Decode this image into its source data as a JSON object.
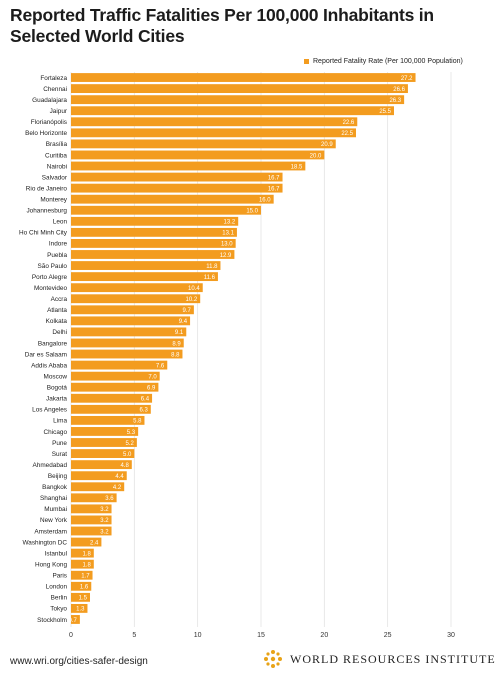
{
  "chart_data": {
    "type": "bar",
    "orientation": "horizontal",
    "title": "Reported Traffic Fatalities Per 100,000 Inhabitants in Selected World Cities",
    "legend": "Reported Fatality Rate (Per 100,000 Population)",
    "legend_position": "top-right",
    "bar_color": "#f39c1f",
    "xlim": [
      0,
      30
    ],
    "xticks": [
      0,
      5,
      10,
      15,
      20,
      25,
      30
    ],
    "grid": true,
    "categories": [
      "Fortaleza",
      "Chennai",
      "Guadalajara",
      "Jaipur",
      "Florianópolis",
      "Belo Horizonte",
      "Brasília",
      "Curitiba",
      "Nairobi",
      "Salvador",
      "Rio de Janeiro",
      "Monterey",
      "Johannesburg",
      "Leon",
      "Ho Chi Minh City",
      "Indore",
      "Puebla",
      "São Paulo",
      "Porto Alegre",
      "Montevideo",
      "Accra",
      "Atlanta",
      "Kolkata",
      "Delhi",
      "Bangalore",
      "Dar es Salaam",
      "Addis Ababa",
      "Moscow",
      "Bogotá",
      "Jakarta",
      "Los Angeles",
      "Lima",
      "Chicago",
      "Pune",
      "Surat",
      "Ahmedabad",
      "Beijing",
      "Bangkok",
      "Shanghai",
      "Mumbai",
      "New York",
      "Amsterdam",
      "Washington DC",
      "Istanbul",
      "Hong Kong",
      "Paris",
      "London",
      "Berlin",
      "Tokyo",
      "Stockholm"
    ],
    "values": [
      27.2,
      26.6,
      26.3,
      25.5,
      22.6,
      22.5,
      20.9,
      20.0,
      18.5,
      16.7,
      16.7,
      16.0,
      15.0,
      13.2,
      13.1,
      13.0,
      12.9,
      11.8,
      11.6,
      10.4,
      10.2,
      9.7,
      9.4,
      9.1,
      8.9,
      8.8,
      7.6,
      7.0,
      6.9,
      6.4,
      6.3,
      5.8,
      5.3,
      5.2,
      5.0,
      4.8,
      4.4,
      4.2,
      3.6,
      3.2,
      3.2,
      3.2,
      2.4,
      1.8,
      1.8,
      1.7,
      1.6,
      1.5,
      1.3,
      0.7
    ],
    "value_labels": [
      "27.2",
      "26.6",
      "26.3",
      "25.5",
      "22.6",
      "22.5",
      "20.9",
      "20.0",
      "18.5",
      "16.7",
      "16.7",
      "16.0",
      "15.0",
      "13.2",
      "13.1",
      "13.0",
      "12.9",
      "11.8",
      "11.6",
      "10.4",
      "10.2",
      "9.7",
      "9.4",
      "9.1",
      "8.9",
      "8.8",
      "7.6",
      "7.0",
      "6.9",
      "6.4",
      "6.3",
      "5.8",
      "5.3",
      "5.2",
      "5.0",
      "4.8",
      "4.4",
      "4.2",
      "3.6",
      "3.2",
      "3.2",
      "3.2",
      "2.4",
      "1.8",
      "1.8",
      "1.7",
      "1.6",
      "1.5",
      "1.3",
      "0.7"
    ]
  },
  "footer": {
    "url": "www.wri.org/cities-safer-design",
    "organization": "WORLD RESOURCES INSTITUTE",
    "logo_icon": "wri-logo-icon"
  }
}
